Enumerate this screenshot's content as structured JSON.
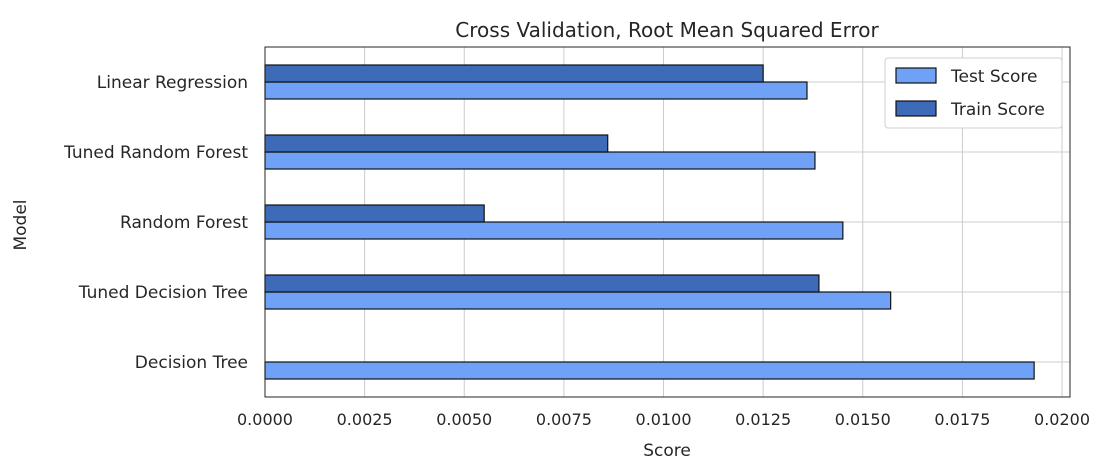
{
  "chart_data": {
    "type": "bar",
    "orientation": "horizontal",
    "title": "Cross Validation, Root Mean Squared Error",
    "xlabel": "Score",
    "ylabel": "Model",
    "xlim": [
      0,
      0.0202
    ],
    "x_ticks": [
      "0.0000",
      "0.0025",
      "0.0050",
      "0.0075",
      "0.0100",
      "0.0125",
      "0.0150",
      "0.0175",
      "0.0200"
    ],
    "grid": true,
    "legend_position": "top-right",
    "categories": [
      "Decision Tree",
      "Tuned Decision Tree",
      "Random Forest",
      "Tuned Random Forest",
      "Linear Regression"
    ],
    "series": [
      {
        "name": "Test Score",
        "color": "#6fa1f7",
        "values": [
          0.0193,
          0.0157,
          0.0145,
          0.0138,
          0.0136
        ]
      },
      {
        "name": "Train Score",
        "color": "#3d6bb8",
        "values": [
          0.0,
          0.0139,
          0.0055,
          0.0086,
          0.0125
        ]
      }
    ]
  }
}
